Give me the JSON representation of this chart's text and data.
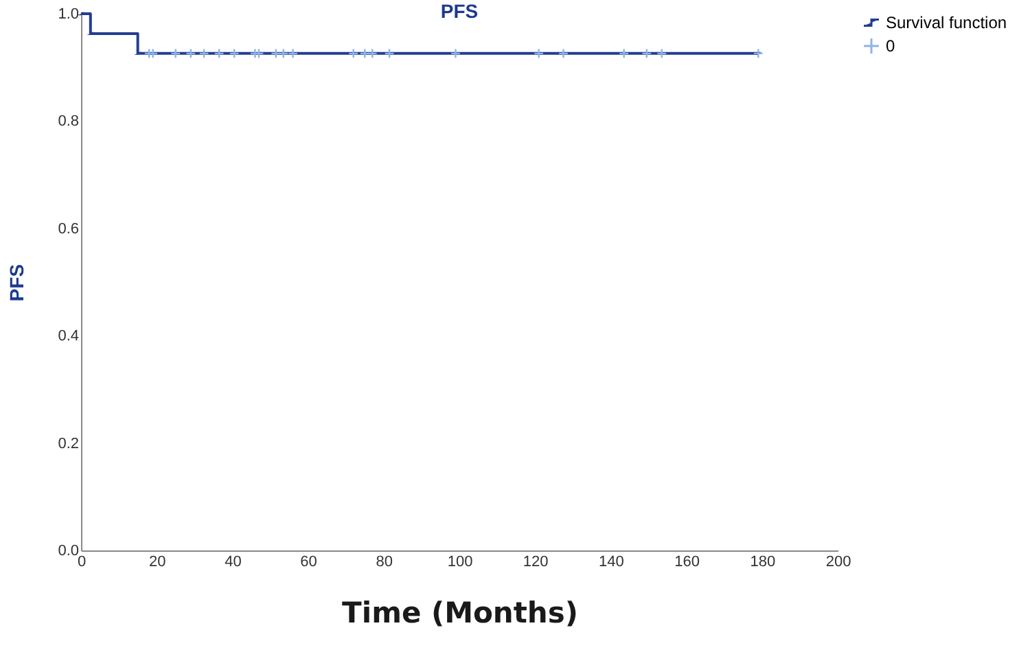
{
  "chart_data": {
    "type": "step",
    "title": "PFS",
    "xlabel": "Time (Months)",
    "ylabel": "PFS",
    "xlim": [
      0,
      200
    ],
    "xticks": [
      0,
      20,
      40,
      60,
      80,
      100,
      120,
      140,
      160,
      180,
      200
    ],
    "ylim": [
      0,
      1.0
    ],
    "yticks": [
      {
        "value": 0,
        "label": "0.0"
      },
      {
        "value": 0.2,
        "label": "0.2"
      },
      {
        "value": 0.4,
        "label": "0.4"
      },
      {
        "value": 0.6,
        "label": "0.6"
      },
      {
        "value": 0.8,
        "label": "0.8"
      },
      {
        "value": 1,
        "label": "1.0"
      }
    ],
    "grid": false,
    "legend": "top right",
    "series": [
      {
        "name": "Survival function",
        "color": "#233d91",
        "x": [
          0,
          2.5,
          15,
          179
        ],
        "values": [
          1,
          0.963,
          0.926,
          0.926
        ]
      },
      {
        "name": "0",
        "type": "scatter",
        "marker": "cross",
        "color": "#8db4e8",
        "x": [
          18,
          19,
          25,
          29,
          32.5,
          36.5,
          40.5,
          46,
          47,
          51.5,
          53.5,
          56,
          72,
          75,
          77,
          81.5,
          99,
          121,
          127.5,
          143.5,
          149.5,
          153.5,
          179
        ],
        "values": [
          0.926,
          0.926,
          0.926,
          0.926,
          0.926,
          0.926,
          0.926,
          0.926,
          0.926,
          0.926,
          0.926,
          0.926,
          0.926,
          0.926,
          0.926,
          0.926,
          0.926,
          0.926,
          0.926,
          0.926,
          0.926,
          0.926,
          0.926
        ]
      }
    ]
  }
}
